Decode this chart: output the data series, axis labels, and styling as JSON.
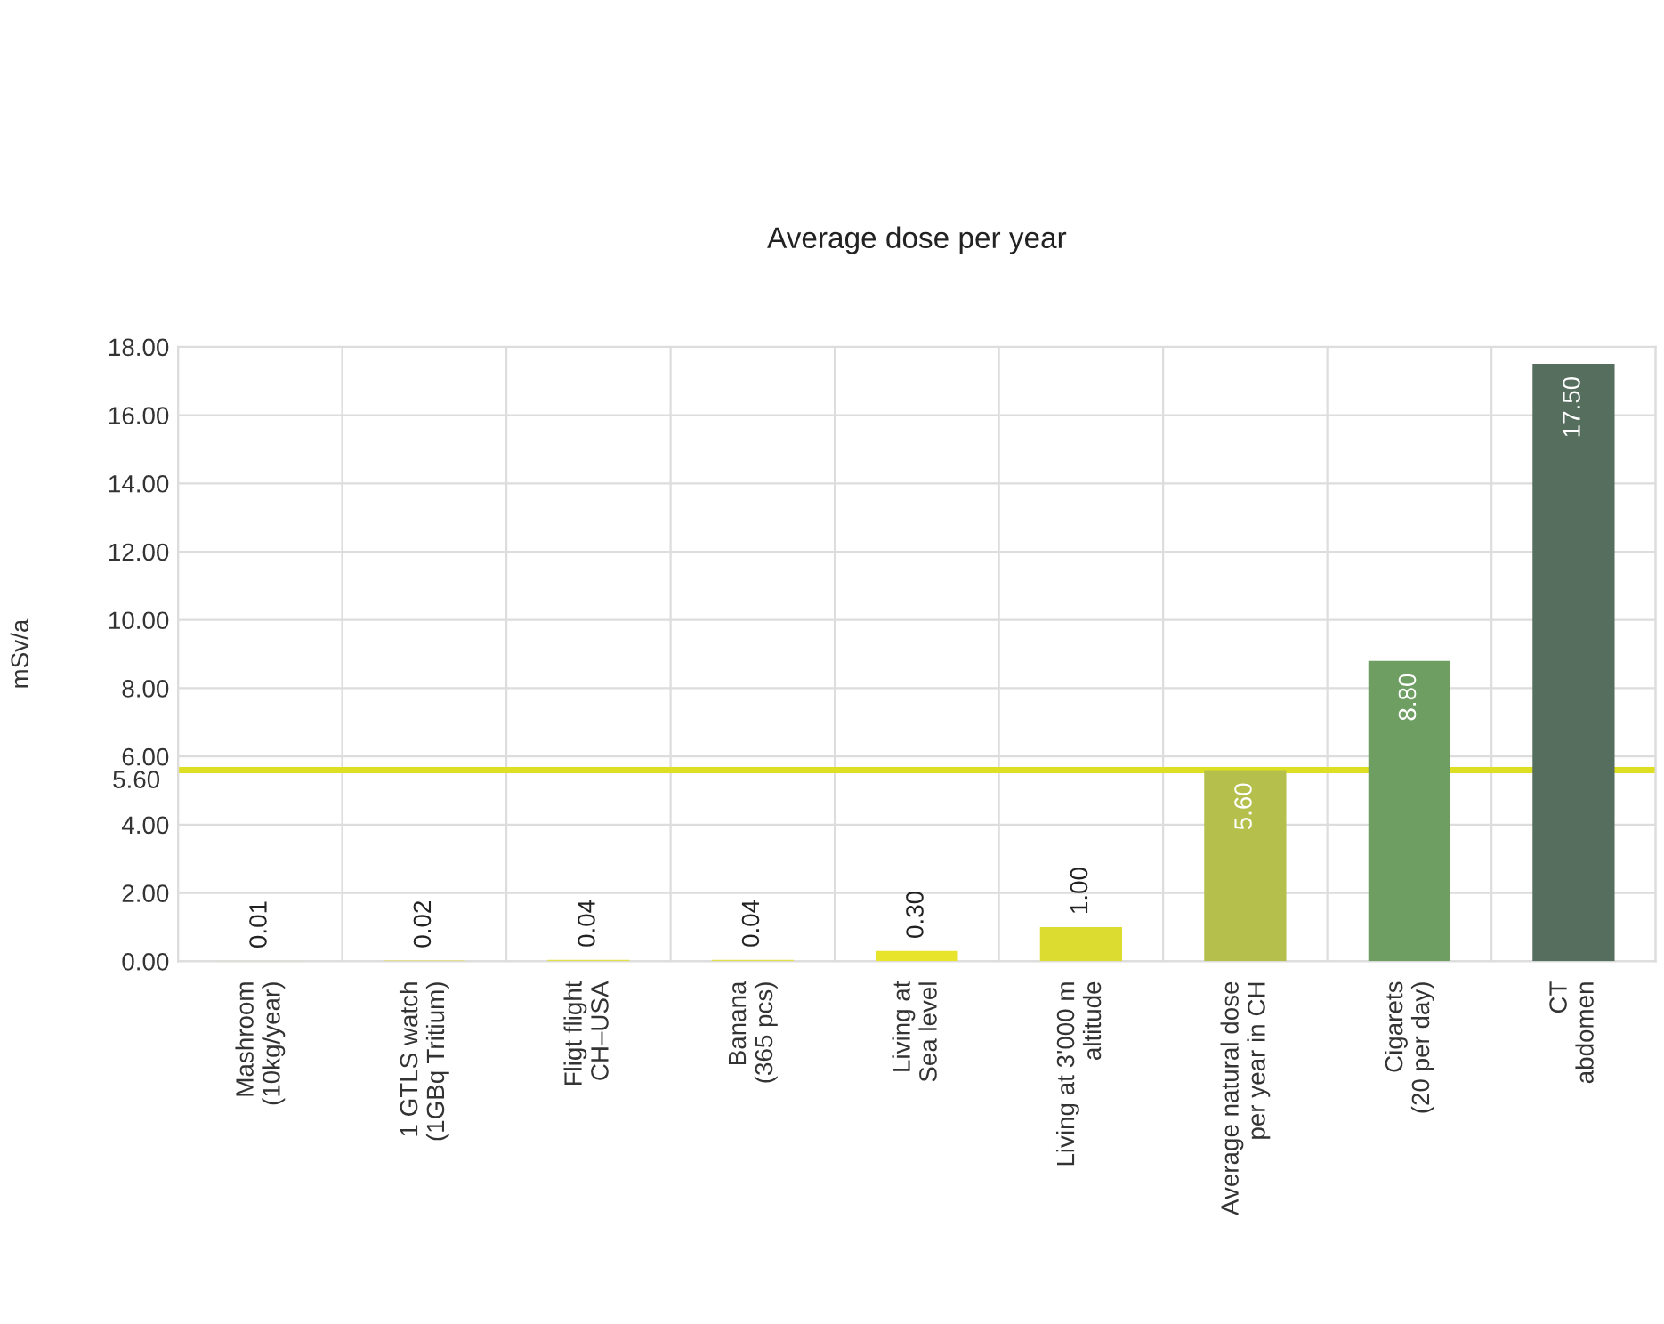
{
  "chart_data": {
    "type": "bar",
    "title": "Average dose per year",
    "ylabel": "mSv/a",
    "categories": [
      "Mashroom\n(10kg/year)",
      "1 GTLS watch\n(1GBq Tritium)",
      "Fligt flight\nCH–USA",
      "Banana\n(365 pcs)",
      "Living at\nSea level",
      "Living at 3'000 m\naltitude",
      "Average natural dose\nper year in CH",
      "Cigarets\n(20 per day)",
      "CT\nabdomen"
    ],
    "values": [
      0.01,
      0.02,
      0.04,
      0.04,
      0.3,
      1.0,
      5.6,
      8.8,
      17.5
    ],
    "value_labels": [
      "0.01",
      "0.02",
      "0.04",
      "0.04",
      "0.30",
      "1.00",
      "5.60",
      "8.80",
      "17.50"
    ],
    "colors": [
      "#e2e04a",
      "#e2e04a",
      "#e2e04a",
      "#e2e04a",
      "#e8e42c",
      "#dcdc30",
      "#b4bf4c",
      "#6e9e62",
      "#566e5e"
    ],
    "ylim": [
      0,
      18
    ],
    "yticks": [
      {
        "value": 0,
        "label": "0.00"
      },
      {
        "value": 2,
        "label": "2.00"
      },
      {
        "value": 4,
        "label": "4.00"
      },
      {
        "value": 6,
        "label": "6.00"
      },
      {
        "value": 8,
        "label": "8.00"
      },
      {
        "value": 10,
        "label": "10.00"
      },
      {
        "value": 12,
        "label": "12.00"
      },
      {
        "value": 14,
        "label": "14.00"
      },
      {
        "value": 16,
        "label": "16.00"
      },
      {
        "value": 18,
        "label": "18.00"
      }
    ],
    "ref_lines": [
      {
        "axis": "y",
        "value": 5.6,
        "label": "5.60",
        "color": "#dede22"
      }
    ],
    "grid": true
  }
}
